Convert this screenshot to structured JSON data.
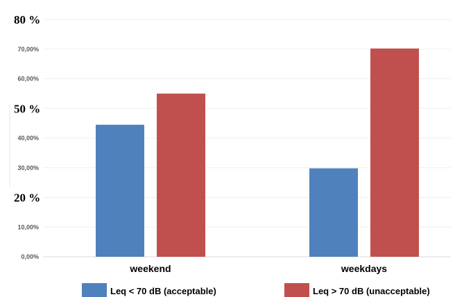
{
  "chart_data": {
    "type": "bar",
    "categories": [
      "weekend",
      "weekdays"
    ],
    "series": [
      {
        "name": "Leq < 70 dB (acceptable)",
        "values": [
          44.5,
          29.8
        ],
        "color": "#4f81bd"
      },
      {
        "name": "Leq > 70 dB (unacceptable)",
        "values": [
          55.0,
          70.2
        ],
        "color": "#c0504d"
      }
    ],
    "y_ticks": [
      "0,00%",
      "10,00%",
      "20,00%",
      "30,00%",
      "40,00%",
      "50,00%",
      "60,00%",
      "70,00%",
      "80,00%"
    ],
    "ylim": [
      0,
      80
    ],
    "grid": true,
    "legend_position": "bottom",
    "overlay_labels": [
      {
        "text": "80 %",
        "value": 80
      },
      {
        "text": "50 %",
        "value": 50
      },
      {
        "text": "20 %",
        "value": 20
      }
    ]
  }
}
